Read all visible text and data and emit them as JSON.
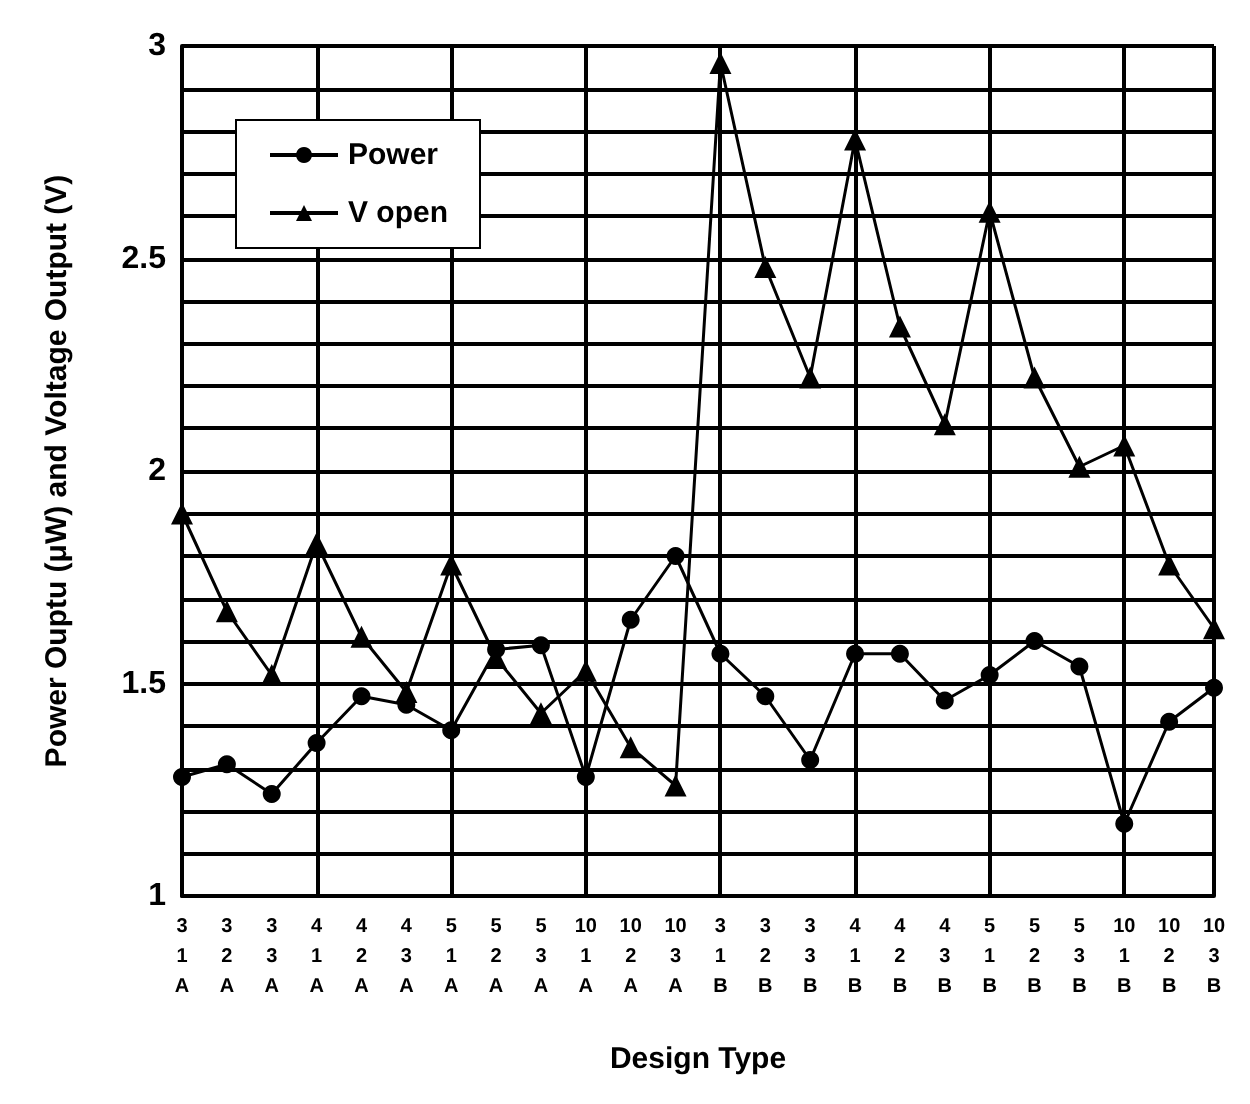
{
  "chart_data": {
    "type": "line",
    "xlabel": "Design Type",
    "ylabel": "Power Ouptu (μW) and Voltage Output (V)",
    "categories": [
      "3\n1\nA",
      "3\n2\nA",
      "3\n3\nA",
      "4\n1\nA",
      "4\n2\nA",
      "4\n3\nA",
      "5\n1\nA",
      "5\n2\nA",
      "5\n3\nA",
      "10\n1\nA",
      "10\n2\nA",
      "10\n3\nA",
      "3\n1\nB",
      "3\n2\nB",
      "3\n3\nB",
      "4\n1\nB",
      "4\n2\nB",
      "4\n3\nB",
      "5\n1\nB",
      "5\n2\nB",
      "5\n3\nB",
      "10\n1\nB",
      "10\n2\nB",
      "10\n3\nB"
    ],
    "series": [
      {
        "name": "Power",
        "color": "#000000",
        "marker": "circle",
        "values": [
          1.28,
          1.31,
          1.24,
          1.36,
          1.47,
          1.45,
          1.39,
          1.58,
          1.59,
          1.28,
          1.65,
          1.8,
          1.57,
          1.47,
          1.32,
          1.57,
          1.57,
          1.46,
          1.52,
          1.6,
          1.54,
          1.17,
          1.41,
          1.49
        ]
      },
      {
        "name": "V open",
        "color": "#000000",
        "marker": "triangle",
        "values": [
          1.9,
          1.67,
          1.52,
          1.83,
          1.61,
          1.48,
          1.78,
          1.56,
          1.43,
          1.53,
          1.35,
          1.26,
          2.96,
          2.48,
          2.22,
          2.78,
          2.34,
          2.11,
          2.61,
          2.22,
          2.01,
          2.06,
          1.78,
          1.63
        ]
      }
    ],
    "ylim": [
      1,
      3
    ],
    "yticks": [
      1,
      {
        "value": 1.1,
        "label": null
      },
      {
        "value": 1.2,
        "label": null
      },
      {
        "value": 1.3,
        "label": null
      },
      {
        "value": 1.4,
        "label": null
      },
      1.5,
      {
        "value": 1.6,
        "label": null
      },
      {
        "value": 1.7,
        "label": null
      },
      {
        "value": 1.8,
        "label": null
      },
      {
        "value": 1.9,
        "label": null
      },
      2,
      {
        "value": 2.1,
        "label": null
      },
      {
        "value": 2.2,
        "label": null
      },
      {
        "value": 2.3,
        "label": null
      },
      {
        "value": 2.4,
        "label": null
      },
      2.5,
      {
        "value": 2.6,
        "label": null
      },
      {
        "value": 2.7,
        "label": null
      },
      {
        "value": 2.8,
        "label": null
      },
      {
        "value": 2.9,
        "label": null
      },
      3
    ],
    "grid": true,
    "legend": "top left",
    "line_style": "solid"
  }
}
